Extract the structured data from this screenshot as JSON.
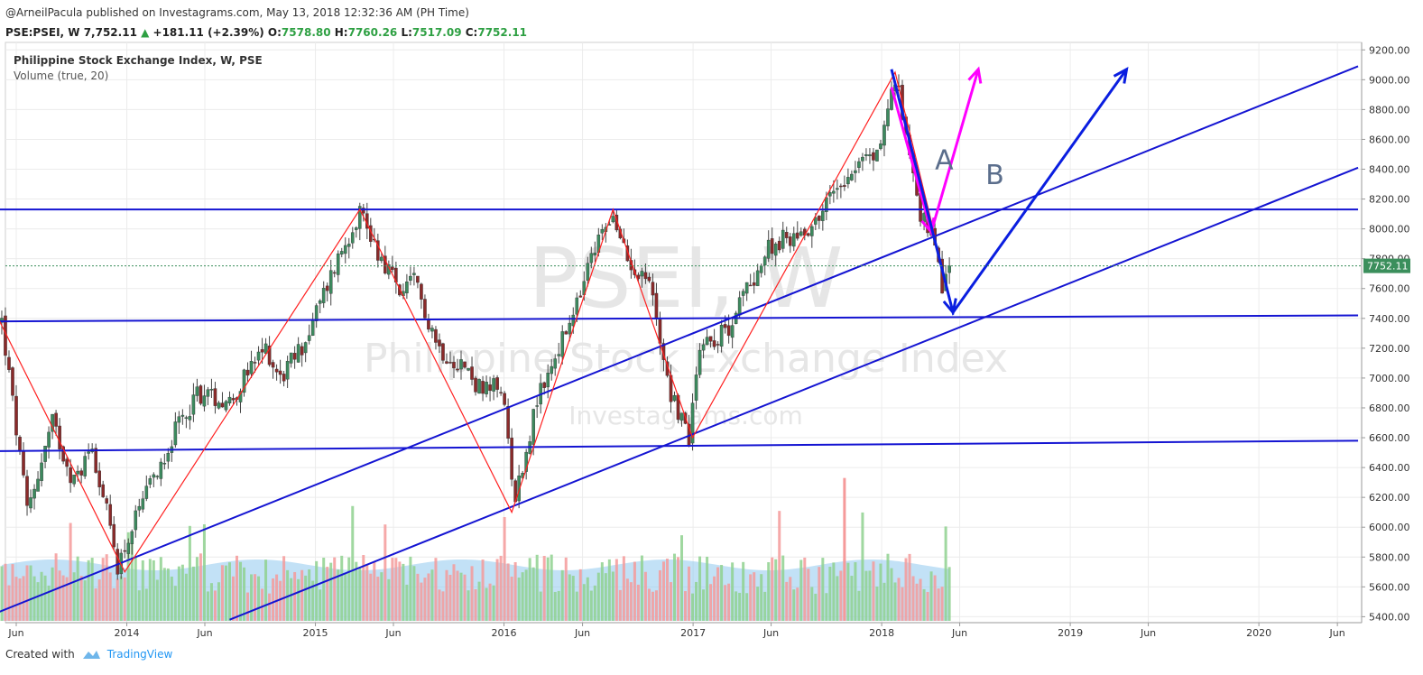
{
  "header": {
    "publisher": "@ArneilPacula published on Investagrams.com, May 13, 2018 12:32:36 AM (PH Time)",
    "symbol": "PSE:PSEI, W",
    "last": "7,752.11",
    "change": "+181.11 (+2.39%)",
    "o_label": "O:",
    "o_value": "7578.80",
    "h_label": "H:",
    "h_value": "7760.26",
    "l_label": "L:",
    "l_value": "7517.09",
    "c_label": "C:",
    "c_value": "7752.11"
  },
  "legend": {
    "title": "Philippine Stock Exchange Index, W, PSE",
    "volume": "Volume (true, 20)"
  },
  "watermark": {
    "big": "PSEI, W",
    "mid": "Philippine Stock Exchange Index",
    "small": "Investagrams.com"
  },
  "footer": {
    "created_with": "Created with",
    "brand": "TradingView"
  },
  "colors": {
    "up": "#3c8a5e",
    "down": "#8b2a2a",
    "trendline": "#1414d2",
    "zigzag": "#ff2020",
    "arrowA": "#ff00ff",
    "arrowB": "#0a1ee0",
    "vol_up": "#8fd18f",
    "vol_down": "#f59a9a",
    "vol_ma": "#8fc9ef",
    "price_tag": "#3b8f5c"
  },
  "chart_data": {
    "type": "candlestick",
    "title": "Philippine Stock Exchange Index, W, PSE",
    "ylim": [
      5360,
      9250
    ],
    "y_ticks": [
      "9200.00",
      "9000.00",
      "8800.00",
      "8600.00",
      "8400.00",
      "8200.00",
      "8000.00",
      "7800.00",
      "7600.00",
      "7400.00",
      "7200.00",
      "7000.00",
      "6800.00",
      "6600.00",
      "6400.00",
      "6200.00",
      "6000.00",
      "5800.00",
      "5600.00",
      "5400.00"
    ],
    "x_ticks": [
      {
        "label": "Jun",
        "date": "2013-06-01"
      },
      {
        "label": "2014",
        "date": "2014-01-01"
      },
      {
        "label": "Jun",
        "date": "2014-06-01"
      },
      {
        "label": "2015",
        "date": "2015-01-01"
      },
      {
        "label": "Jun",
        "date": "2015-06-01"
      },
      {
        "label": "2016",
        "date": "2016-01-01"
      },
      {
        "label": "Jun",
        "date": "2016-06-01"
      },
      {
        "label": "2017",
        "date": "2017-01-01"
      },
      {
        "label": "Jun",
        "date": "2017-06-01"
      },
      {
        "label": "2018",
        "date": "2018-01-01"
      },
      {
        "label": "Jun",
        "date": "2018-06-01"
      },
      {
        "label": "2019",
        "date": "2019-01-01"
      },
      {
        "label": "Jun",
        "date": "2019-06-01"
      },
      {
        "label": "2020",
        "date": "2020-01-01"
      },
      {
        "label": "Jun",
        "date": "2020-06-01"
      }
    ],
    "last_price": "7752.11",
    "anchors": [
      [
        "2013-05-04",
        7380
      ],
      [
        "2013-06-22",
        6100
      ],
      [
        "2013-08-10",
        6700
      ],
      [
        "2013-09-21",
        6300
      ],
      [
        "2013-10-26",
        6550
      ],
      [
        "2013-12-14",
        5750
      ],
      [
        "2014-01-25",
        6100
      ],
      [
        "2014-03-22",
        6550
      ],
      [
        "2014-05-17",
        6900
      ],
      [
        "2014-07-19",
        6850
      ],
      [
        "2014-09-27",
        7200
      ],
      [
        "2014-10-25",
        7000
      ],
      [
        "2014-12-13",
        7250
      ],
      [
        "2015-02-07",
        7750
      ],
      [
        "2015-03-28",
        8130
      ],
      [
        "2015-05-02",
        7850
      ],
      [
        "2015-06-20",
        7550
      ],
      [
        "2015-07-11",
        7650
      ],
      [
        "2015-08-29",
        7200
      ],
      [
        "2015-10-10",
        7100
      ],
      [
        "2015-11-21",
        6900
      ],
      [
        "2015-12-26",
        6950
      ],
      [
        "2016-01-23",
        6200
      ],
      [
        "2016-03-05",
        6850
      ],
      [
        "2016-04-16",
        7200
      ],
      [
        "2016-05-14",
        7400
      ],
      [
        "2016-06-18",
        7800
      ],
      [
        "2016-07-23",
        8100
      ],
      [
        "2016-08-27",
        7800
      ],
      [
        "2016-10-08",
        7650
      ],
      [
        "2016-11-19",
        6900
      ],
      [
        "2016-12-24",
        6600
      ],
      [
        "2017-01-14",
        7250
      ],
      [
        "2017-03-04",
        7300
      ],
      [
        "2017-04-15",
        7600
      ],
      [
        "2017-06-03",
        7900
      ],
      [
        "2017-07-15",
        7950
      ],
      [
        "2017-08-26",
        8050
      ],
      [
        "2017-10-07",
        8300
      ],
      [
        "2017-11-18",
        8450
      ],
      [
        "2017-12-23",
        8500
      ],
      [
        "2018-01-27",
        9000
      ],
      [
        "2018-02-24",
        8550
      ],
      [
        "2018-03-17",
        8100
      ],
      [
        "2018-04-07",
        7950
      ],
      [
        "2018-04-28",
        7600
      ],
      [
        "2018-05-12",
        7752
      ]
    ],
    "volume_ma_level": 5780,
    "volume_spike": {
      "date": "2017-10-21",
      "value": 6330
    },
    "trendlines": [
      {
        "name": "resistance-8130",
        "from": [
          "2013-04-20",
          8130
        ],
        "to": [
          "2020-07-11",
          8130
        ]
      },
      {
        "name": "support-7390",
        "from": [
          "2013-04-20",
          7380
        ],
        "to": [
          "2020-07-11",
          7420
        ]
      },
      {
        "name": "support-6510",
        "from": [
          "2013-04-20",
          6510
        ],
        "to": [
          "2020-07-11",
          6580
        ]
      },
      {
        "name": "channel-upper",
        "from": [
          "2013-04-20",
          5420
        ],
        "to": [
          "2020-07-11",
          9090
        ]
      },
      {
        "name": "channel-lower",
        "from": [
          "2014-07-19",
          5380
        ],
        "to": [
          "2020-07-11",
          8410
        ]
      }
    ],
    "zigzag": [
      [
        "2013-04-27",
        7400
      ],
      [
        "2013-12-28",
        5700
      ],
      [
        "2015-03-28",
        8130
      ],
      [
        "2016-01-16",
        6100
      ],
      [
        "2016-07-30",
        8130
      ],
      [
        "2016-12-31",
        6600
      ],
      [
        "2018-01-27",
        9050
      ],
      [
        "2018-04-14",
        7950
      ]
    ],
    "annotations": [
      {
        "label": "A",
        "at": [
          "2018-04-14",
          8400
        ]
      },
      {
        "label": "B",
        "at": [
          "2018-07-21",
          8300
        ]
      }
    ],
    "arrowA": [
      [
        "2018-01-20",
        8950
      ],
      [
        "2018-04-07",
        7980
      ],
      [
        "2018-07-07",
        9070
      ]
    ],
    "arrowB": [
      [
        "2018-01-20",
        9070
      ],
      [
        "2018-05-19",
        7440
      ],
      [
        "2019-04-20",
        9070
      ]
    ]
  }
}
